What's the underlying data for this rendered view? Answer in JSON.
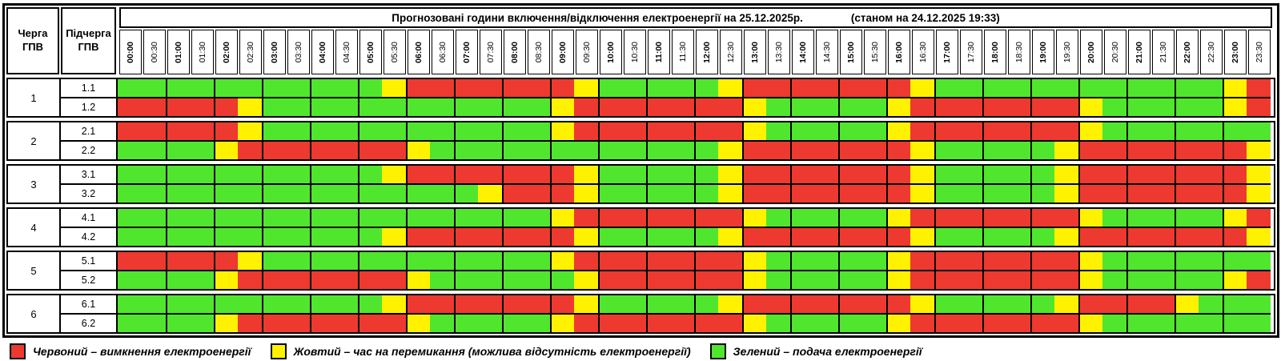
{
  "header": {
    "queue_col": "Черга ГПВ",
    "subqueue_col": "Підчерга ГПВ",
    "title": "Прогнозовані години включення/відключення електроенергії на 25.12.2025р.",
    "as_of": "(станом на 24.12.2025 19:33)"
  },
  "colors": {
    "R": "#EE3930",
    "Y": "#FFF200",
    "G": "#50E62D"
  },
  "legend": [
    {
      "key": "R",
      "label": "Червоний – вимкнення електроенергії"
    },
    {
      "key": "Y",
      "label": "Жовтий – час на перемикання (можлива відсутність електроенергії)"
    },
    {
      "key": "G",
      "label": "Зелений – подача електроенергії"
    }
  ],
  "chart_data": {
    "type": "heatmap",
    "title": "Прогнозовані години включення/відключення електроенергії на 25.12.2025р.",
    "as_of": "станом на 24.12.2025 19:33",
    "cell_minutes": 30,
    "encoding": {
      "R": "червоний – вимкнення електроенергії",
      "Y": "жовтий – час на перемикання (можлива відсутність електроенергії)",
      "G": "зелений – подача електроенергії"
    },
    "x": [
      "00:00",
      "00:30",
      "01:00",
      "01:30",
      "02:00",
      "02:30",
      "03:00",
      "03:30",
      "04:00",
      "04:30",
      "05:00",
      "05:30",
      "06:00",
      "06:30",
      "07:00",
      "07:30",
      "08:00",
      "08:30",
      "09:00",
      "09:30",
      "10:00",
      "10:30",
      "11:00",
      "11:30",
      "12:00",
      "12:30",
      "13:00",
      "13:30",
      "14:00",
      "14:30",
      "15:00",
      "15:30",
      "16:00",
      "16:30",
      "17:00",
      "17:30",
      "18:00",
      "18:30",
      "19:00",
      "19:30",
      "20:00",
      "20:30",
      "21:00",
      "21:30",
      "22:00",
      "22:30",
      "23:00",
      "23:30"
    ],
    "rows": [
      {
        "queue": "1",
        "subqueue": "1.1",
        "slots": "GGGGGGGGGGGYRRRRRRRYGGGGGYRRRRRRRYGGGGGGGGGGGGYR"
      },
      {
        "queue": "1",
        "subqueue": "1.2",
        "slots": "RRRRRYGGGGGGGGGGGGYRRRRRRRYGGGGGYRRRRRRRYGGGGGYR"
      },
      {
        "queue": "2",
        "subqueue": "2.1",
        "slots": "RRRRRYGGGGGGGGGGGGYRRRRRRRYGGGGGYRRRRRRRYGGGGGGG"
      },
      {
        "queue": "2",
        "subqueue": "2.2",
        "slots": "GGGGYRRRRRRRYGGGGGGGGGGGGYRRRRRRRYGGGGGYRRRRRRRY"
      },
      {
        "queue": "3",
        "subqueue": "3.1",
        "slots": "GGGGGGGGGGGYRRRRRRRYGGGGGYRRRRRRRYGGGGGYRRRRRRRY"
      },
      {
        "queue": "3",
        "subqueue": "3.2",
        "slots": "GGGGGGGGGGGGGGGYRRRYGGGGGYRRRRRRRYGGGGGYRRRRRRRY"
      },
      {
        "queue": "4",
        "subqueue": "4.1",
        "slots": "GGGGGGGGGGGGGGGGGGYRRRRRRRYGGGGGYRRRRRRRYGGGGGYR"
      },
      {
        "queue": "4",
        "subqueue": "4.2",
        "slots": "GGGGGGGGGGGYRRRRRRRYGGGGGYRRRRRRRYGGGGGYRRRRRRRY"
      },
      {
        "queue": "5",
        "subqueue": "5.1",
        "slots": "RRRRRYGGGGGGGGGGGGYRRRRRRRYGGGGGYRRRRRRRYGGGGGGG"
      },
      {
        "queue": "5",
        "subqueue": "5.2",
        "slots": "GGGGYRRRRRRRYGGGGGGYRRRRRRYGGGGGYRRRRRRRYGGGGGYR"
      },
      {
        "queue": "6",
        "subqueue": "6.1",
        "slots": "GGGGGGGGGGGYRRRRRRRYGGGGGYRRRRRRRYGGGGGYRRRRYGGG"
      },
      {
        "queue": "6",
        "subqueue": "6.2",
        "slots": "GGGGYRRRRRRRYGGGGGYRRRRRRRYGGGGGYRRRRRRRYGGGGGGG"
      }
    ]
  }
}
